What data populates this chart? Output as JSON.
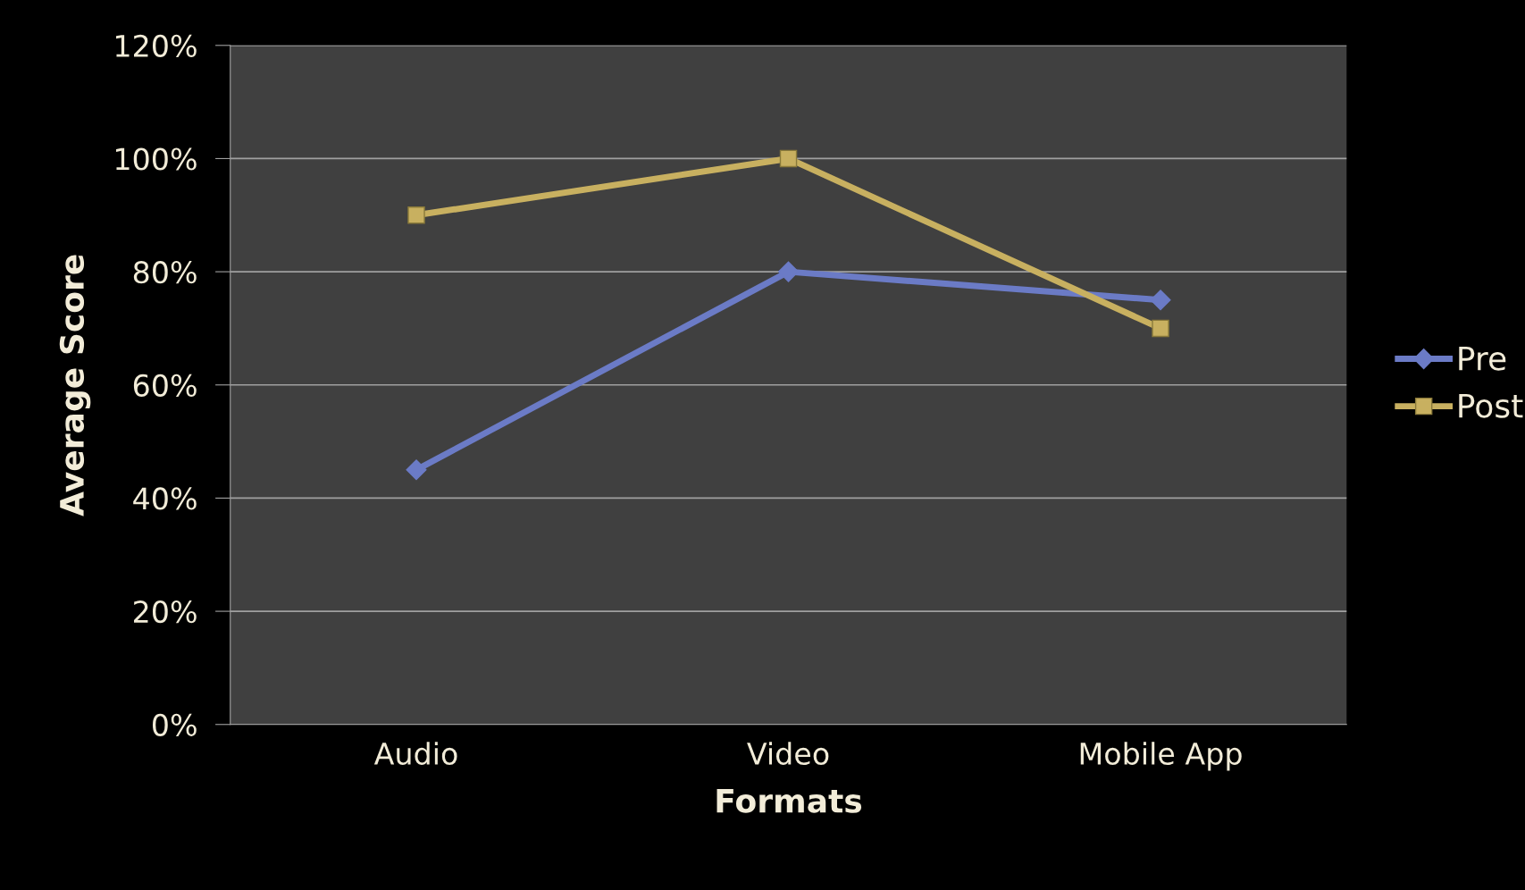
{
  "chart_data": {
    "type": "line",
    "xlabel": "Formats",
    "ylabel": "Average Score",
    "categories": [
      "Audio",
      "Video",
      "Mobile App"
    ],
    "series": [
      {
        "name": "Pre",
        "color": "#6b7bc6",
        "marker": "diamond",
        "values": [
          45,
          80,
          75
        ]
      },
      {
        "name": "Post",
        "color": "#c8b060",
        "marker": "square",
        "values": [
          90,
          100,
          70
        ]
      }
    ],
    "ylim": [
      0,
      120
    ],
    "yticks": [
      {
        "value": 0,
        "label": "0%"
      },
      {
        "value": 20,
        "label": "20%"
      },
      {
        "value": 40,
        "label": "40%"
      },
      {
        "value": 60,
        "label": "60%"
      },
      {
        "value": 80,
        "label": "80%"
      },
      {
        "value": 100,
        "label": "100%"
      },
      {
        "value": 120,
        "label": "120%"
      }
    ],
    "grid": "y",
    "legend": "right",
    "line_style": "solid"
  }
}
